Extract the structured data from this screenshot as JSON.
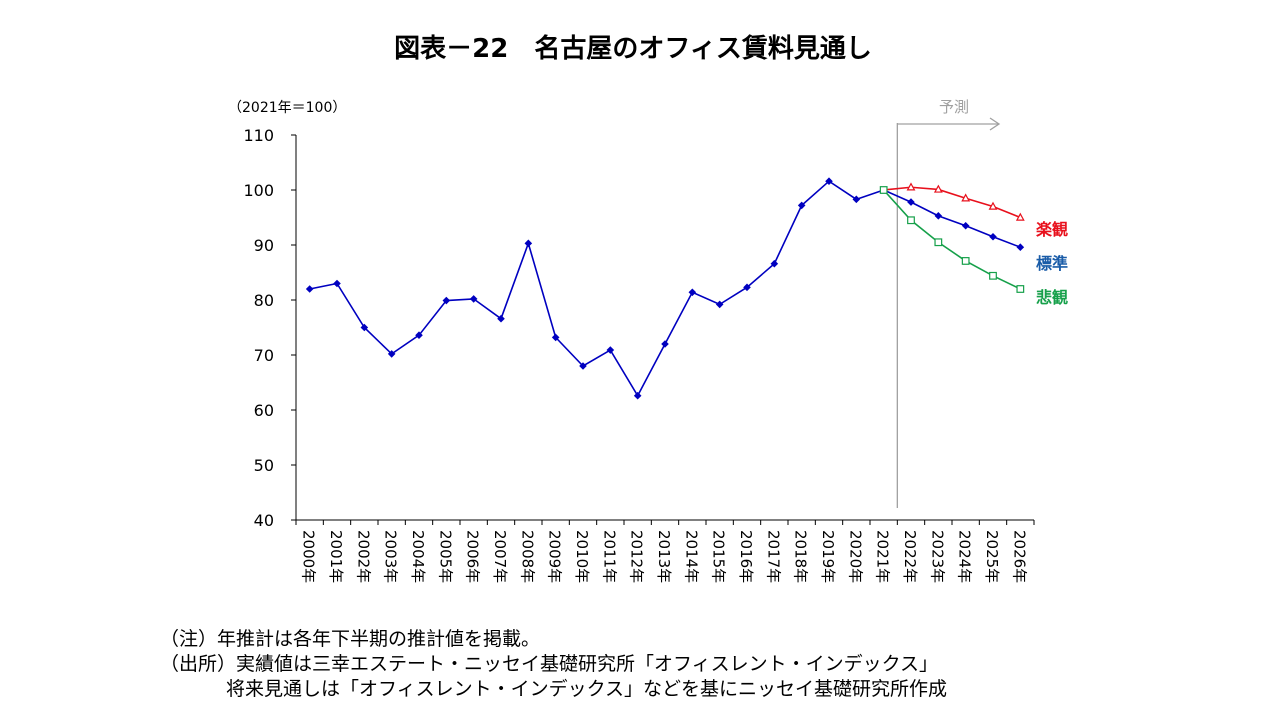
{
  "chart_data": {
    "type": "line",
    "title": "図表－22　名古屋のオフィス賃料見通し",
    "unit_label": "（2021年＝100）",
    "forecast_label": "予測",
    "ylim": [
      40,
      110
    ],
    "yticks": [
      40,
      50,
      60,
      70,
      80,
      90,
      100,
      110
    ],
    "categories": [
      "2000年",
      "2001年",
      "2002年",
      "2003年",
      "2004年",
      "2005年",
      "2006年",
      "2007年",
      "2008年",
      "2009年",
      "2010年",
      "2011年",
      "2012年",
      "2013年",
      "2014年",
      "2015年",
      "2016年",
      "2017年",
      "2018年",
      "2019年",
      "2020年",
      "2021年",
      "2022年",
      "2023年",
      "2024年",
      "2025年",
      "2026年"
    ],
    "forecast_start": "2021年",
    "grid": false,
    "legend": "right-end labels",
    "series": [
      {
        "name": "",
        "color": "#0000c0",
        "marker": "diamond",
        "values": [
          82,
          83,
          75,
          70.2,
          73.6,
          79.9,
          80.2,
          76.6,
          90.3,
          73.2,
          68,
          70.9,
          62.6,
          72,
          81.4,
          79.2,
          82.3,
          86.6,
          97.2,
          101.6,
          98.3,
          100,
          null,
          null,
          null,
          null,
          null
        ]
      },
      {
        "name": "楽観",
        "color": "#e8101c",
        "marker": "triangle-open",
        "values": [
          null,
          null,
          null,
          null,
          null,
          null,
          null,
          null,
          null,
          null,
          null,
          null,
          null,
          null,
          null,
          null,
          null,
          null,
          null,
          null,
          null,
          100,
          100.5,
          100.1,
          98.5,
          97,
          95
        ]
      },
      {
        "name": "標準",
        "color": "#0000c0",
        "marker": "diamond",
        "values": [
          null,
          null,
          null,
          null,
          null,
          null,
          null,
          null,
          null,
          null,
          null,
          null,
          null,
          null,
          null,
          null,
          null,
          null,
          null,
          null,
          null,
          100,
          97.8,
          95.3,
          93.5,
          91.5,
          89.6
        ]
      },
      {
        "name": "悲観",
        "color": "#16a04a",
        "marker": "square-open",
        "values": [
          null,
          null,
          null,
          null,
          null,
          null,
          null,
          null,
          null,
          null,
          null,
          null,
          null,
          null,
          null,
          null,
          null,
          null,
          null,
          null,
          null,
          100,
          94.5,
          90.5,
          87.1,
          84.4,
          82
        ]
      }
    ],
    "legend_colors": {
      "楽観": "#e8101c",
      "標準": "#1a5ca8",
      "悲観": "#16a04a"
    },
    "forecast_color": "#a0a0a0"
  },
  "notes": {
    "line1": "（注）年推計は各年下半期の推計値を掲載。",
    "line2": "（出所）実績値は三幸エステート・ニッセイ基礎研究所「オフィスレント・インデックス」",
    "line3": "将来見通しは「オフィスレント・インデックス」などを基にニッセイ基礎研究所作成"
  }
}
